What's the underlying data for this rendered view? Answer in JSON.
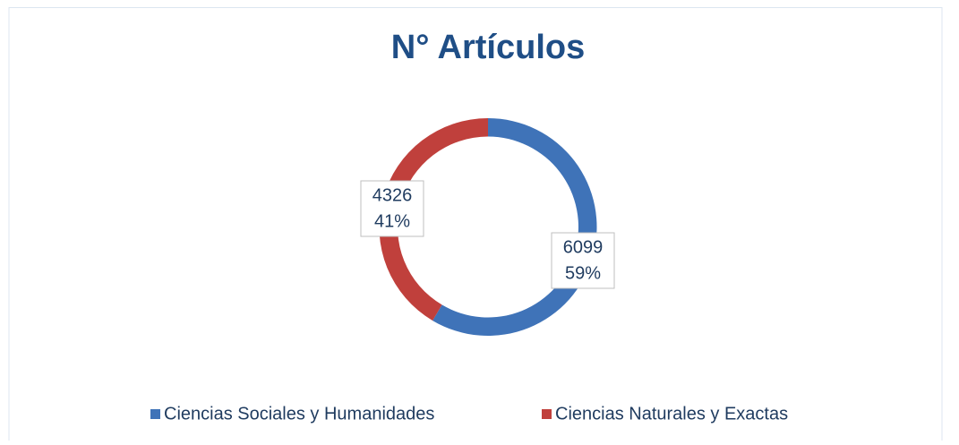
{
  "chart_data": {
    "type": "donut",
    "title": "N° Artículos",
    "categories": [
      "Ciencias Sociales y Humanidades",
      "Ciencias Naturales y Exactas"
    ],
    "values": [
      6099,
      4326
    ],
    "percent_labels": [
      "59%",
      "41%"
    ],
    "colors": [
      "#3f73b8",
      "#c0403c"
    ],
    "legend": "bottom"
  }
}
